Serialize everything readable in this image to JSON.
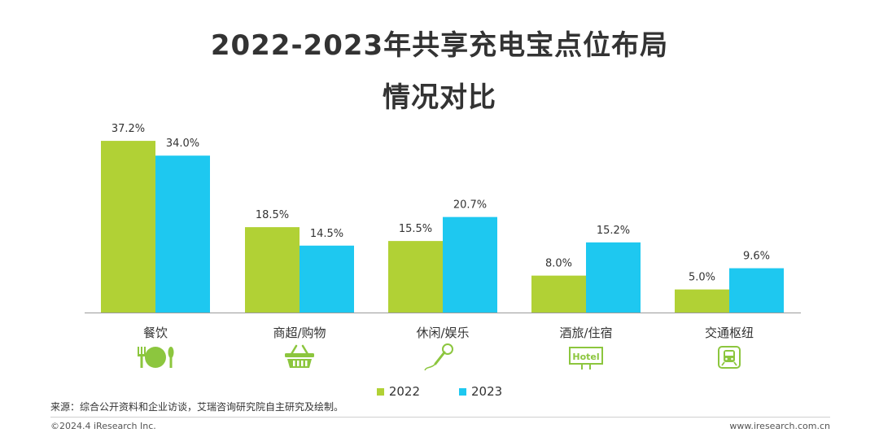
{
  "title_line1": "2022-2023年共享充电宝点位布局",
  "title_line2": "情况对比",
  "colors": {
    "s2022": "#b1d135",
    "s2023": "#1ec8f0",
    "axis": "#9a9a9a",
    "icon": "#8cc63e"
  },
  "chart_data": {
    "type": "bar",
    "categories": [
      "餐饮",
      "商超/购物",
      "休闲/娱乐",
      "酒旅/住宿",
      "交通枢纽"
    ],
    "series": [
      {
        "name": "2022",
        "values": [
          37.2,
          18.5,
          15.5,
          8.0,
          5.0
        ],
        "labels": [
          "37.2%",
          "18.5%",
          "15.5%",
          "8.0%",
          "5.0%"
        ]
      },
      {
        "name": "2023",
        "values": [
          34.0,
          14.5,
          20.7,
          15.2,
          9.6
        ],
        "labels": [
          "34.0%",
          "14.5%",
          "20.7%",
          "15.2%",
          "9.6%"
        ]
      }
    ],
    "ylim": [
      0,
      42
    ],
    "legend": "bottom-center",
    "grid": false
  },
  "category_icons": [
    "dining-icon",
    "shopping-basket-icon",
    "microphone-icon",
    "hotel-sign-icon",
    "train-icon"
  ],
  "hotel_icon_text": "Hotel",
  "legend_2022": "2022",
  "legend_2023": "2023",
  "source": "来源：综合公开资料和企业访谈，艾瑞咨询研究院自主研究及绘制。",
  "copyright": "©2024.4 iResearch Inc.",
  "website": "www.iresearch.com.cn"
}
